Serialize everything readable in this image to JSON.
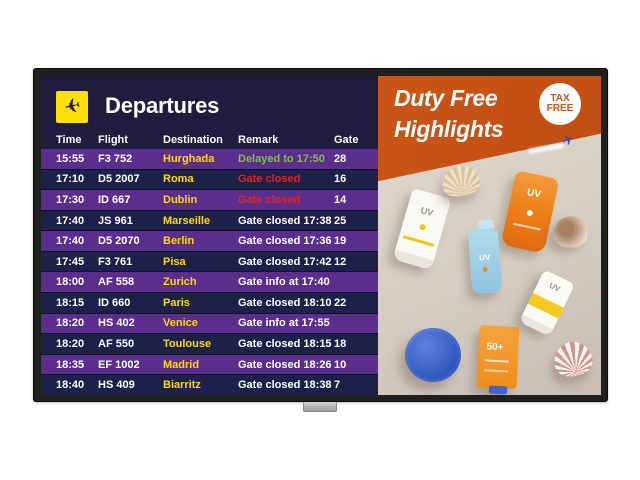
{
  "colors": {
    "row_purple": "#5b2d8c",
    "row_navy": "#1d2048",
    "board_bg": "#201c3e",
    "destination_yellow": "#ffd900",
    "remark_green": "#7dc242",
    "remark_red": "#e52320",
    "ad_orange": "#c65414",
    "icon_yellow": "#ffe000"
  },
  "departures": {
    "title": "Departures",
    "icon": "departures-plane-icon",
    "columns": [
      "Time",
      "Flight",
      "Destination",
      "Remark",
      "Gate"
    ],
    "rows": [
      {
        "time": "15:55",
        "flight": "F3 752",
        "destination": "Hurghada",
        "remark": "Delayed to 17:50",
        "remark_color": "green",
        "gate": "28"
      },
      {
        "time": "17:10",
        "flight": "D5 2007",
        "destination": "Roma",
        "remark": "Gate closed",
        "remark_color": "red",
        "gate": "16"
      },
      {
        "time": "17:30",
        "flight": "ID 667",
        "destination": "Dublin",
        "remark": "Gate closed",
        "remark_color": "red",
        "gate": "14"
      },
      {
        "time": "17:40",
        "flight": "JS 961",
        "destination": "Marseille",
        "remark": "Gate closed 17:38",
        "remark_color": "white",
        "gate": "25"
      },
      {
        "time": "17:40",
        "flight": "D5 2070",
        "destination": "Berlin",
        "remark": "Gate closed 17:36",
        "remark_color": "white",
        "gate": "19"
      },
      {
        "time": "17:45",
        "flight": "F3 761",
        "destination": "Pisa",
        "remark": "Gate closed 17:42",
        "remark_color": "white",
        "gate": "12"
      },
      {
        "time": "18:00",
        "flight": "AF 558",
        "destination": "Zurich",
        "remark": "Gate info at 17:40",
        "remark_color": "white",
        "gate": ""
      },
      {
        "time": "18:15",
        "flight": "ID 660",
        "destination": "Paris",
        "remark": "Gate closed 18:10",
        "remark_color": "white",
        "gate": "22"
      },
      {
        "time": "18:20",
        "flight": "HS 402",
        "destination": "Venice",
        "remark": "Gate info at 17:55",
        "remark_color": "white",
        "gate": ""
      },
      {
        "time": "18:20",
        "flight": "AF 550",
        "destination": "Toulouse",
        "remark": "Gate closed 18:15",
        "remark_color": "white",
        "gate": "18"
      },
      {
        "time": "18:35",
        "flight": "EF 1002",
        "destination": "Madrid",
        "remark": "Gate closed 18:26",
        "remark_color": "white",
        "gate": "10"
      },
      {
        "time": "18:40",
        "flight": "HS 409",
        "destination": "Biarritz",
        "remark": "Gate closed 18:38",
        "remark_color": "white",
        "gate": "7"
      }
    ]
  },
  "ad": {
    "title_line1": "Duty Free",
    "title_line2": "Highlights",
    "badge": [
      "TAX",
      "FREE"
    ],
    "product_labels": {
      "uv": "UV",
      "spf": "50+"
    }
  }
}
